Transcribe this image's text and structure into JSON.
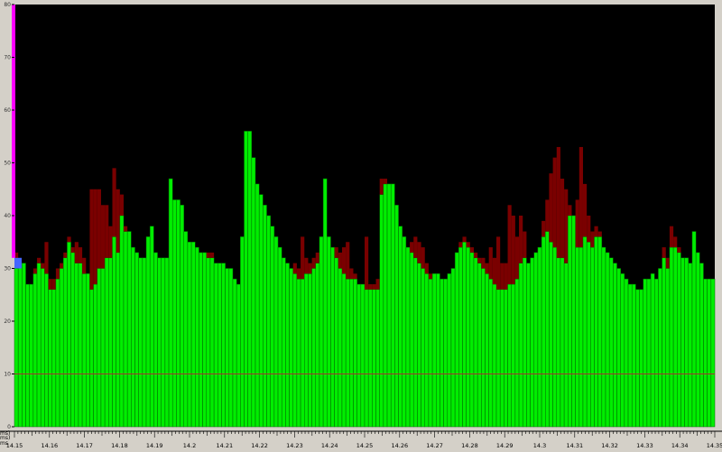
{
  "chart_data": {
    "type": "bar",
    "stacked": true,
    "ylim": [
      0,
      80
    ],
    "yticks": [
      0,
      10,
      20,
      30,
      40,
      50,
      60,
      70,
      80
    ],
    "xlim": [
      14.15,
      14.35
    ],
    "xticks": [
      "14.15",
      "14.16",
      "14.17",
      "14.18",
      "14.19",
      "14.2",
      "14.21",
      "14.22",
      "14.23",
      "14.24",
      "14.25",
      "14.26",
      "14.27",
      "14.28",
      "14.29",
      "14.3",
      "14.31",
      "14.32",
      "14.33",
      "14.34",
      "14.35"
    ],
    "y_axis_unit_label": "ms)",
    "x_axis_label": "ms)",
    "x_axis_label_2": "ms",
    "reference_line": 10,
    "colors": {
      "plot_background": "#000000",
      "base_series": "#00ee00",
      "base_series_edge": "#006600",
      "excess_series": "#7a0000",
      "reference_line": "#aa3333",
      "left_marker": "#ff00ff",
      "frame": "#d4d0c8"
    },
    "series": [
      {
        "values": [
          30,
          31,
          31,
          27,
          27,
          29,
          31,
          30,
          29,
          26,
          26,
          28,
          30,
          32,
          35,
          33,
          31,
          31,
          29,
          29,
          26,
          27,
          30,
          30,
          32,
          32,
          36,
          33,
          40,
          37,
          37,
          34,
          33,
          32,
          32,
          36,
          38,
          33,
          32,
          32,
          32,
          47,
          43,
          43,
          42,
          37,
          35,
          35,
          34,
          33,
          33,
          32,
          32,
          31,
          31,
          31,
          30,
          30,
          28,
          27,
          36,
          56,
          56,
          51,
          46,
          44,
          42,
          40,
          38,
          36,
          34,
          32,
          31,
          30,
          29,
          28,
          28,
          29,
          29,
          30,
          31,
          36,
          47,
          36,
          34,
          32,
          30,
          29,
          28,
          28,
          28,
          27,
          27,
          26,
          26,
          26,
          26,
          44,
          46,
          46,
          46,
          42,
          38,
          36,
          34,
          33,
          32,
          31,
          30,
          29,
          28,
          29,
          29,
          28,
          28,
          29,
          30,
          33,
          34,
          35,
          34,
          33,
          32,
          31,
          30,
          29,
          28,
          27,
          26,
          26,
          26,
          27,
          27,
          28,
          31,
          32,
          31,
          32,
          33,
          34,
          36,
          37,
          35,
          34,
          32,
          32,
          31,
          40,
          40,
          34,
          34,
          36,
          35,
          34,
          36,
          36,
          34,
          33,
          32,
          31,
          30,
          29,
          28,
          27,
          27,
          26,
          26,
          28,
          28,
          29,
          28,
          30,
          32,
          30,
          34,
          34,
          33,
          32,
          32,
          31,
          37,
          33,
          31,
          28,
          28,
          28
        ]
      },
      {
        "values": [
          3,
          0,
          0,
          0,
          0,
          1,
          1,
          1,
          6,
          2,
          2,
          2,
          1,
          1,
          1,
          1,
          4,
          3,
          3,
          0,
          19,
          18,
          15,
          12,
          10,
          6,
          13,
          12,
          4,
          1,
          0,
          0,
          0,
          0,
          0,
          0,
          0,
          0,
          0,
          0,
          0,
          0,
          0,
          0,
          0,
          0,
          0,
          0,
          0,
          0,
          0,
          1,
          1,
          0,
          0,
          0,
          0,
          0,
          0,
          0,
          0,
          0,
          0,
          0,
          0,
          0,
          0,
          0,
          0,
          0,
          0,
          0,
          0,
          0,
          2,
          2,
          8,
          3,
          2,
          2,
          2,
          0,
          0,
          0,
          0,
          2,
          3,
          5,
          7,
          2,
          1,
          0,
          0,
          10,
          1,
          1,
          2,
          3,
          1,
          0,
          0,
          0,
          0,
          0,
          0,
          2,
          4,
          4,
          4,
          2,
          1,
          0,
          0,
          0,
          0,
          0,
          0,
          0,
          1,
          1,
          1,
          1,
          1,
          1,
          2,
          2,
          6,
          5,
          10,
          5,
          5,
          15,
          13,
          8,
          9,
          5,
          0,
          0,
          0,
          0,
          3,
          6,
          13,
          17,
          21,
          15,
          14,
          2,
          0,
          9,
          19,
          10,
          5,
          3,
          2,
          1,
          0,
          0,
          0,
          0,
          0,
          0,
          0,
          0,
          0,
          0,
          0,
          0,
          0,
          0,
          0,
          0,
          2,
          2,
          4,
          2,
          1,
          0,
          0,
          0,
          0,
          0,
          0,
          0,
          0,
          0
        ]
      }
    ]
  }
}
